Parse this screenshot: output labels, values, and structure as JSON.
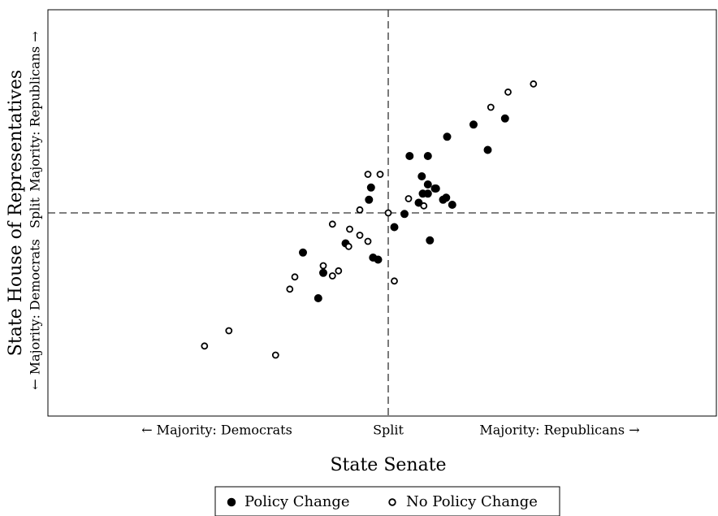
{
  "chart_data": {
    "type": "scatter",
    "title": "",
    "xlabel": "State Senate",
    "ylabel": "State House of Representatives",
    "xlim": [
      -1,
      1
    ],
    "ylim": [
      -1,
      1
    ],
    "x_tick_labels": {
      "left": "← Majority: Democrats",
      "center": "Split",
      "right": "Majority: Republicans →"
    },
    "y_tick_labels": {
      "bottom": "← Majority: Democrats",
      "center": "Split",
      "top": "Majority: Republicans →"
    },
    "reference_lines": {
      "x": 0,
      "y": 0,
      "style": "dashed"
    },
    "grid": false,
    "legend_position": "bottom-center",
    "series": [
      {
        "name": "Policy Change",
        "marker": "filled-circle",
        "color": "#000000",
        "points": [
          {
            "x": -0.42,
            "y": -0.195
          },
          {
            "x": -0.32,
            "y": -0.295
          },
          {
            "x": -0.345,
            "y": -0.42
          },
          {
            "x": -0.21,
            "y": -0.15
          },
          {
            "x": -0.085,
            "y": 0.125
          },
          {
            "x": -0.095,
            "y": 0.065
          },
          {
            "x": -0.075,
            "y": -0.22
          },
          {
            "x": -0.05,
            "y": -0.23
          },
          {
            "x": 0.03,
            "y": -0.07
          },
          {
            "x": 0.08,
            "y": -0.005
          },
          {
            "x": 0.105,
            "y": 0.28
          },
          {
            "x": 0.15,
            "y": 0.05
          },
          {
            "x": 0.165,
            "y": 0.18
          },
          {
            "x": 0.17,
            "y": 0.095
          },
          {
            "x": 0.195,
            "y": 0.28
          },
          {
            "x": 0.195,
            "y": 0.14
          },
          {
            "x": 0.195,
            "y": 0.095
          },
          {
            "x": 0.205,
            "y": -0.135
          },
          {
            "x": 0.23,
            "y": 0.12
          },
          {
            "x": 0.235,
            "y": 0.12
          },
          {
            "x": 0.27,
            "y": 0.065
          },
          {
            "x": 0.285,
            "y": 0.075
          },
          {
            "x": 0.29,
            "y": 0.375
          },
          {
            "x": 0.315,
            "y": 0.04
          },
          {
            "x": 0.42,
            "y": 0.435
          },
          {
            "x": 0.49,
            "y": 0.31
          },
          {
            "x": 0.575,
            "y": 0.465
          }
        ]
      },
      {
        "name": "No Policy Change",
        "marker": "open-circle",
        "color": "#000000",
        "points": [
          {
            "x": -0.905,
            "y": -0.655
          },
          {
            "x": -0.785,
            "y": -0.58
          },
          {
            "x": -0.555,
            "y": -0.7
          },
          {
            "x": -0.485,
            "y": -0.375
          },
          {
            "x": -0.46,
            "y": -0.315
          },
          {
            "x": -0.32,
            "y": -0.26
          },
          {
            "x": -0.275,
            "y": -0.31
          },
          {
            "x": -0.245,
            "y": -0.285
          },
          {
            "x": -0.275,
            "y": -0.055
          },
          {
            "x": -0.19,
            "y": -0.08
          },
          {
            "x": -0.195,
            "y": -0.165
          },
          {
            "x": -0.14,
            "y": 0.015
          },
          {
            "x": -0.14,
            "y": -0.11
          },
          {
            "x": -0.1,
            "y": -0.14
          },
          {
            "x": -0.1,
            "y": 0.19
          },
          {
            "x": -0.04,
            "y": 0.19
          },
          {
            "x": 0.0,
            "y": 0.0
          },
          {
            "x": 0.03,
            "y": -0.335
          },
          {
            "x": 0.1,
            "y": 0.07
          },
          {
            "x": 0.175,
            "y": 0.035
          },
          {
            "x": 0.505,
            "y": 0.52
          },
          {
            "x": 0.59,
            "y": 0.595
          },
          {
            "x": 0.715,
            "y": 0.635
          }
        ]
      }
    ]
  }
}
